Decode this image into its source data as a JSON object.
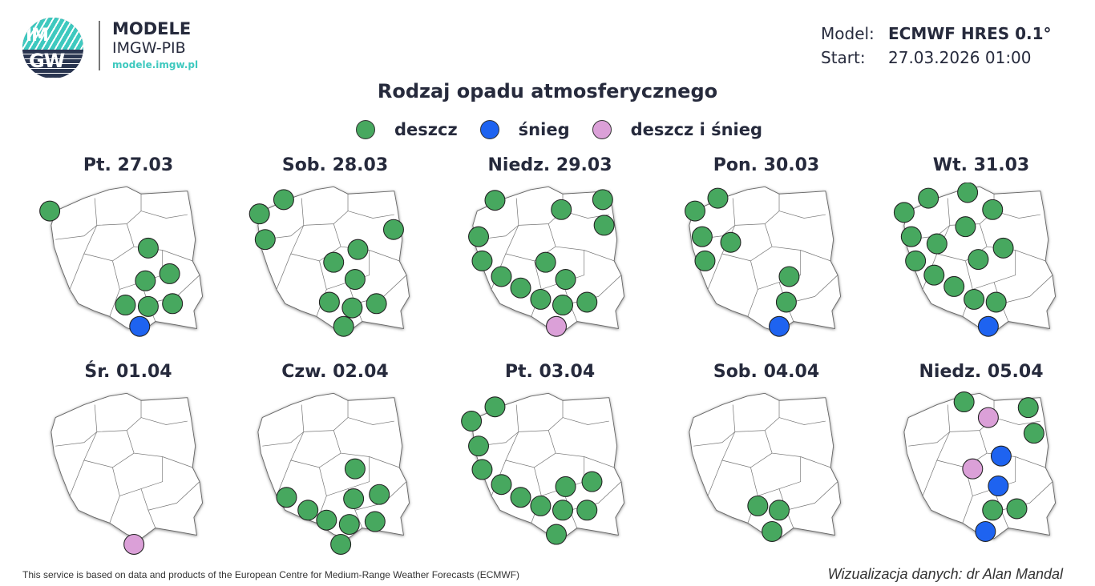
{
  "logo": {
    "circle_top": "IM",
    "circle_bottom": "GW",
    "title": "MODELE",
    "subtitle": "IMGW-PIB",
    "url": "modele.imgw.pl"
  },
  "meta": {
    "model_label": "Model:",
    "model_value": "ECMWF HRES 0.1°",
    "start_label": "Start:",
    "start_value": "27.03.2026 01:00"
  },
  "title": "Rodzaj opadu atmosferycznego",
  "legend": [
    {
      "label": "deszcz",
      "color": "#47a85f"
    },
    {
      "label": "śnieg",
      "color": "#1e63f0"
    },
    {
      "label": "deszcz i śnieg",
      "color": "#dba0d8"
    }
  ],
  "colors": {
    "rain": "#47a85f",
    "snow": "#1e63f0",
    "mixed": "#dba0d8",
    "text": "#262a3c",
    "accent": "#3ec9bf"
  },
  "panels": [
    {
      "label": "Pt. 27.03",
      "dots": [
        [
          12,
          40,
          "rain"
        ],
        [
          150,
          92,
          "rain"
        ],
        [
          146,
          138,
          "rain"
        ],
        [
          180,
          128,
          "rain"
        ],
        [
          118,
          172,
          "rain"
        ],
        [
          150,
          174,
          "rain"
        ],
        [
          184,
          170,
          "rain"
        ],
        [
          138,
          202,
          "snow"
        ]
      ]
    },
    {
      "label": "Sob. 28.03",
      "dots": [
        [
          50,
          24,
          "rain"
        ],
        [
          16,
          44,
          "rain"
        ],
        [
          24,
          80,
          "rain"
        ],
        [
          204,
          66,
          "rain"
        ],
        [
          154,
          94,
          "rain"
        ],
        [
          120,
          112,
          "rain"
        ],
        [
          150,
          136,
          "rain"
        ],
        [
          114,
          168,
          "rain"
        ],
        [
          146,
          176,
          "rain"
        ],
        [
          180,
          170,
          "rain"
        ],
        [
          134,
          202,
          "rain"
        ]
      ]
    },
    {
      "label": "Niedz. 29.03",
      "dots": [
        [
          45,
          25,
          "rain"
        ],
        [
          138,
          38,
          "rain"
        ],
        [
          196,
          24,
          "rain"
        ],
        [
          198,
          60,
          "rain"
        ],
        [
          22,
          76,
          "rain"
        ],
        [
          27,
          110,
          "rain"
        ],
        [
          54,
          132,
          "rain"
        ],
        [
          81,
          148,
          "rain"
        ],
        [
          116,
          112,
          "rain"
        ],
        [
          144,
          136,
          "rain"
        ],
        [
          109,
          164,
          "rain"
        ],
        [
          140,
          172,
          "rain"
        ],
        [
          174,
          168,
          "rain"
        ],
        [
          131,
          202,
          "mixed"
        ]
      ]
    },
    {
      "label": "Pon. 30.03",
      "dots": [
        [
          54,
          22,
          "rain"
        ],
        [
          22,
          40,
          "rain"
        ],
        [
          32,
          76,
          "rain"
        ],
        [
          72,
          84,
          "rain"
        ],
        [
          36,
          110,
          "rain"
        ],
        [
          154,
          132,
          "rain"
        ],
        [
          150,
          168,
          "rain"
        ],
        [
          140,
          202,
          "snow"
        ]
      ]
    },
    {
      "label": "Wt. 31.03",
      "dots": [
        [
          48,
          22,
          "rain"
        ],
        [
          103,
          14,
          "rain"
        ],
        [
          138,
          38,
          "rain"
        ],
        [
          14,
          42,
          "rain"
        ],
        [
          24,
          76,
          "rain"
        ],
        [
          60,
          86,
          "rain"
        ],
        [
          100,
          62,
          "rain"
        ],
        [
          153,
          92,
          "rain"
        ],
        [
          30,
          110,
          "rain"
        ],
        [
          118,
          108,
          "rain"
        ],
        [
          56,
          130,
          "rain"
        ],
        [
          84,
          146,
          "rain"
        ],
        [
          112,
          164,
          "rain"
        ],
        [
          143,
          168,
          "rain"
        ],
        [
          132,
          202,
          "snow"
        ]
      ]
    },
    {
      "label": "Śr. 01.04",
      "dots": [
        [
          130,
          218,
          "mixed"
        ]
      ]
    },
    {
      "label": "Czw. 02.04",
      "dots": [
        [
          150,
          112,
          "rain"
        ],
        [
          184,
          148,
          "rain"
        ],
        [
          54,
          152,
          "rain"
        ],
        [
          84,
          170,
          "rain"
        ],
        [
          110,
          184,
          "rain"
        ],
        [
          148,
          154,
          "rain"
        ],
        [
          142,
          190,
          "rain"
        ],
        [
          178,
          186,
          "rain"
        ],
        [
          130,
          218,
          "rain"
        ]
      ]
    },
    {
      "label": "Pt. 03.04",
      "dots": [
        [
          45,
          25,
          "rain"
        ],
        [
          12,
          45,
          "rain"
        ],
        [
          22,
          80,
          "rain"
        ],
        [
          27,
          113,
          "rain"
        ],
        [
          54,
          134,
          "rain"
        ],
        [
          81,
          152,
          "rain"
        ],
        [
          109,
          164,
          "rain"
        ],
        [
          144,
          137,
          "rain"
        ],
        [
          181,
          130,
          "rain"
        ],
        [
          140,
          170,
          "rain"
        ],
        [
          174,
          170,
          "rain"
        ],
        [
          131,
          204,
          "rain"
        ]
      ]
    },
    {
      "label": "Sob. 04.04",
      "dots": [
        [
          110,
          164,
          "rain"
        ],
        [
          140,
          170,
          "rain"
        ],
        [
          130,
          200,
          "rain"
        ]
      ]
    },
    {
      "label": "Niedz. 05.04",
      "dots": [
        [
          98,
          18,
          "rain"
        ],
        [
          132,
          40,
          "mixed"
        ],
        [
          188,
          26,
          "rain"
        ],
        [
          196,
          62,
          "rain"
        ],
        [
          150,
          94,
          "snow"
        ],
        [
          110,
          112,
          "mixed"
        ],
        [
          146,
          136,
          "snow"
        ],
        [
          138,
          170,
          "rain"
        ],
        [
          172,
          168,
          "rain"
        ],
        [
          128,
          200,
          "snow"
        ]
      ]
    }
  ],
  "footer": {
    "left": "This service is based on data and products of the European Centre for Medium-Range Weather Forecasts (ECMWF)",
    "right": "Wizualizacja danych: dr Alan Mandal"
  }
}
